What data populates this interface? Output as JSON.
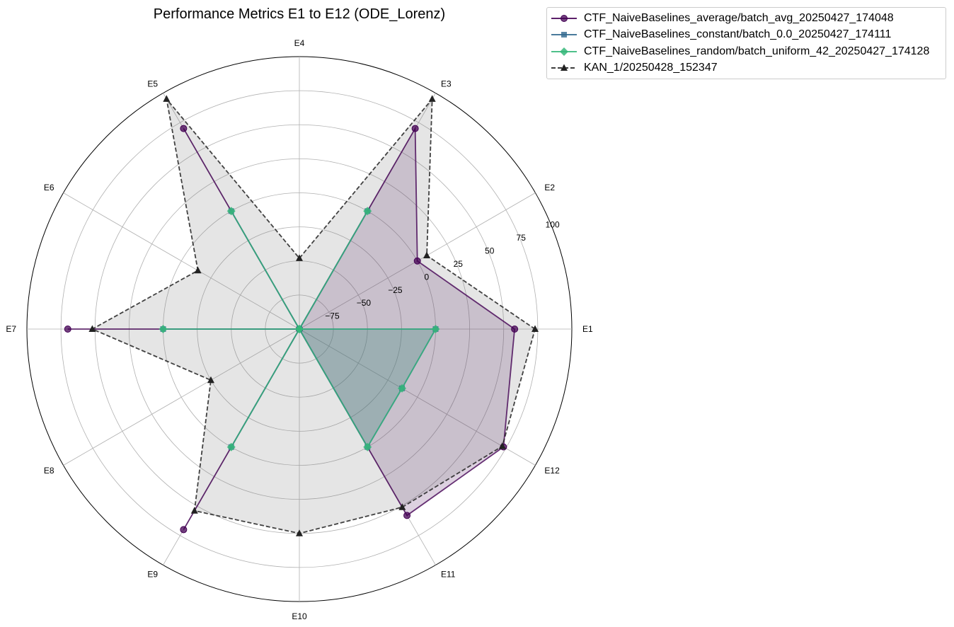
{
  "chart_data": {
    "type": "radar",
    "title": "Performance Metrics E1 to E12 (ODE_Lorenz)",
    "categories": [
      "E1",
      "E2",
      "E3",
      "E4",
      "E5",
      "E6",
      "E7",
      "E8",
      "E9",
      "E10",
      "E11",
      "E12"
    ],
    "rlim": [
      -100,
      100
    ],
    "rticks": [
      -75,
      -50,
      -25,
      0,
      25,
      50,
      75,
      100
    ],
    "rtick_labels": [
      "−75",
      "−50",
      "−25",
      "0",
      "25",
      "50",
      "75",
      "100"
    ],
    "grid": true,
    "legend_position": "upper-right outside",
    "series": [
      {
        "name": "CTF_NaiveBaselines_average/batch_avg_20250427_174048",
        "values": [
          58,
          0,
          70,
          -100,
          70,
          -100,
          70,
          -100,
          70,
          -100,
          58,
          73
        ],
        "color": "#440154",
        "marker": "circle",
        "linestyle": "solid",
        "fill": true
      },
      {
        "name": "CTF_NaiveBaselines_constant/batch_0.0_20250427_174111",
        "values": [
          0,
          -100,
          0,
          -100,
          0,
          -100,
          0,
          -100,
          0,
          -100,
          0,
          -13
        ],
        "color": "#31688e",
        "marker": "square",
        "linestyle": "solid",
        "fill": true
      },
      {
        "name": "CTF_NaiveBaselines_random/batch_uniform_42_20250427_174128",
        "values": [
          0,
          -100,
          0,
          -100,
          0,
          -100,
          0,
          -100,
          0,
          -100,
          0,
          -13
        ],
        "color": "#35b779",
        "marker": "diamond",
        "linestyle": "solid",
        "fill": true
      },
      {
        "name": "KAN_1/20250428_152347",
        "values": [
          73,
          8,
          95,
          -48,
          95,
          -14,
          52,
          -25,
          54,
          50,
          51,
          72
        ],
        "color": "#222222",
        "marker": "triangle",
        "linestyle": "dashed",
        "fill": true
      }
    ]
  }
}
